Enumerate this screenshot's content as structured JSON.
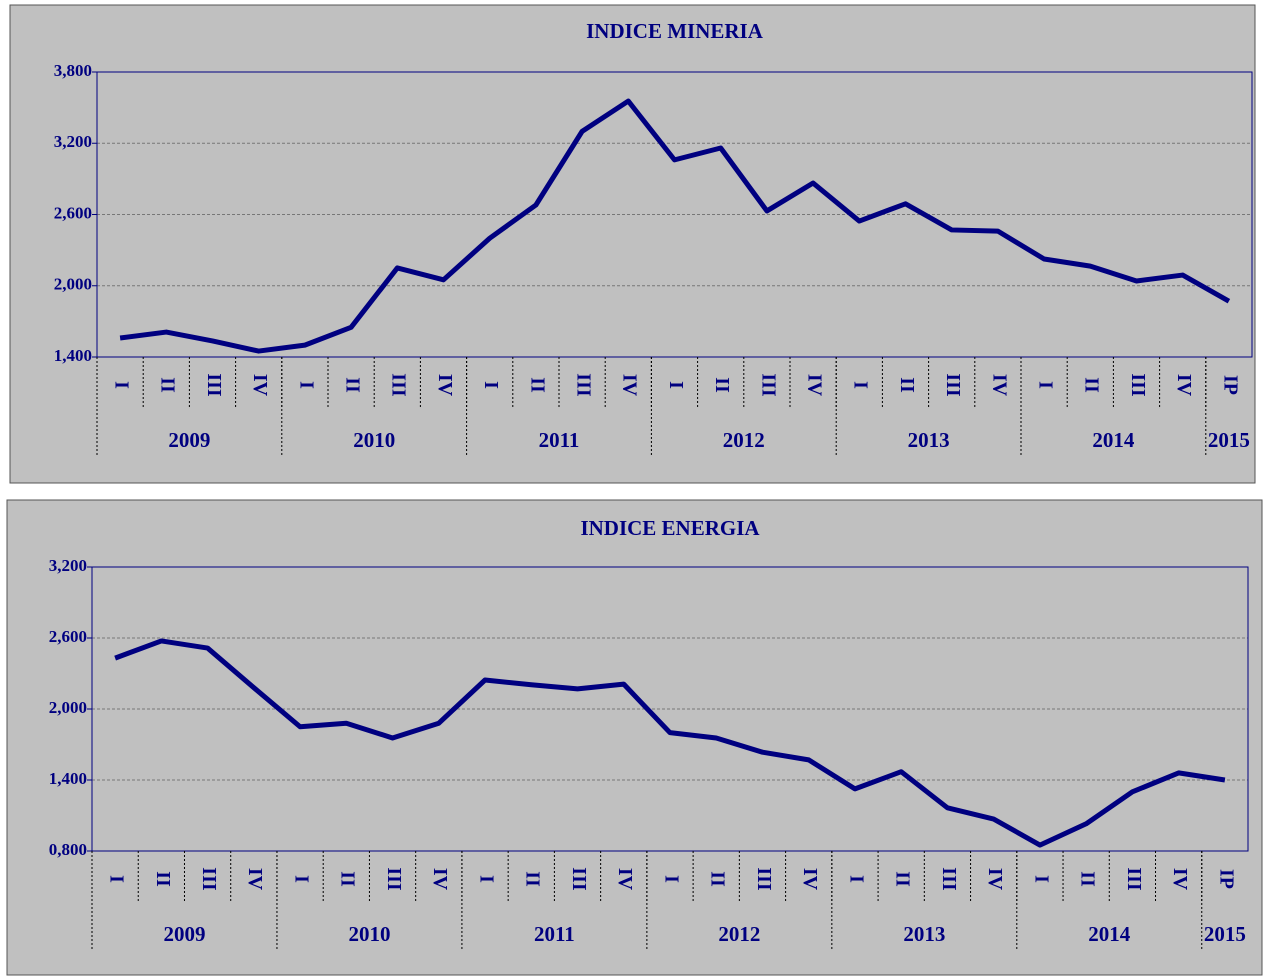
{
  "chart_data": [
    {
      "type": "line",
      "title": "INDICE MINERIA",
      "categories": [
        "I",
        "II",
        "III",
        "IV",
        "I",
        "II",
        "III",
        "IV",
        "I",
        "II",
        "III",
        "IV",
        "I",
        "II",
        "III",
        "IV",
        "I",
        "II",
        "III",
        "IV",
        "I",
        "II",
        "III",
        "IV",
        "IP"
      ],
      "groups": [
        {
          "label": "2009",
          "count": 4
        },
        {
          "label": "2010",
          "count": 4
        },
        {
          "label": "2011",
          "count": 4
        },
        {
          "label": "2012",
          "count": 4
        },
        {
          "label": "2013",
          "count": 4
        },
        {
          "label": "2014",
          "count": 4
        },
        {
          "label": "2015",
          "count": 1
        }
      ],
      "series": [
        {
          "color": "#000080",
          "values": [
            1560,
            1610,
            1535,
            1450,
            1500,
            1650,
            2150,
            2050,
            2400,
            2680,
            3300,
            3555,
            3060,
            3160,
            2630,
            2865,
            2545,
            2690,
            2470,
            2460,
            2225,
            2165,
            2040,
            2090,
            1870
          ]
        }
      ],
      "ylim": [
        1400,
        3800
      ],
      "yticks": [
        {
          "value": 1400,
          "label": "1,400"
        },
        {
          "value": 2000,
          "label": "2,000"
        },
        {
          "value": 2600,
          "label": "2,600"
        },
        {
          "value": 3200,
          "label": "3,200"
        },
        {
          "value": 3800,
          "label": "3,800"
        }
      ],
      "grid": true
    },
    {
      "type": "line",
      "title": "INDICE ENERGIA",
      "categories": [
        "I",
        "II",
        "III",
        "IV",
        "I",
        "II",
        "III",
        "IV",
        "I",
        "II",
        "III",
        "IV",
        "I",
        "II",
        "III",
        "IV",
        "I",
        "II",
        "III",
        "IV",
        "I",
        "II",
        "III",
        "IV",
        "IP"
      ],
      "groups": [
        {
          "label": "2009",
          "count": 4
        },
        {
          "label": "2010",
          "count": 4
        },
        {
          "label": "2011",
          "count": 4
        },
        {
          "label": "2012",
          "count": 4
        },
        {
          "label": "2013",
          "count": 4
        },
        {
          "label": "2014",
          "count": 4
        },
        {
          "label": "2015",
          "count": 1
        }
      ],
      "series": [
        {
          "color": "#000080",
          "values": [
            2430,
            2575,
            2515,
            2180,
            1850,
            1880,
            1755,
            1880,
            2245,
            2205,
            2170,
            2210,
            1800,
            1755,
            1635,
            1570,
            1325,
            1470,
            1165,
            1070,
            850,
            1030,
            1300,
            1460,
            1400
          ]
        }
      ],
      "ylim": [
        800,
        3200
      ],
      "yticks": [
        {
          "value": 800,
          "label": "0,800"
        },
        {
          "value": 1400,
          "label": "1,400"
        },
        {
          "value": 2000,
          "label": "2,000"
        },
        {
          "value": 2600,
          "label": "2,600"
        },
        {
          "value": 3200,
          "label": "3,200"
        }
      ],
      "grid": true
    }
  ]
}
